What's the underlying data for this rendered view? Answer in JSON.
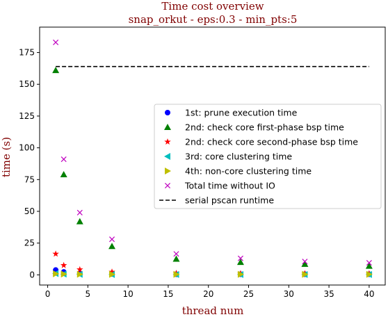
{
  "chart_data": {
    "type": "scatter",
    "title": "Time cost overview",
    "subtitle": "snap_orkut - eps:0.3 - min_pts:5",
    "xlabel": "thread num",
    "ylabel": "time (s)",
    "xlim": [
      -1,
      42
    ],
    "ylim": [
      -8,
      195
    ],
    "xticks": [
      0,
      5,
      10,
      15,
      20,
      25,
      30,
      35,
      40
    ],
    "yticks": [
      0,
      25,
      50,
      75,
      100,
      125,
      150,
      175
    ],
    "grid": false,
    "legend_position": "center-right",
    "x": [
      1,
      2,
      4,
      8,
      16,
      24,
      32,
      40
    ],
    "series": [
      {
        "name": "1st: prune execution time",
        "marker": "circle",
        "color": "#0000ff",
        "values": [
          3.8,
          2.3,
          1.2,
          0.7,
          0.5,
          0.5,
          0.5,
          0.5
        ]
      },
      {
        "name": "2nd: check core first-phase bsp time",
        "marker": "triangle-up",
        "color": "#008000",
        "values": [
          161,
          79,
          42,
          22.5,
          12.5,
          10,
          8.5,
          7
        ]
      },
      {
        "name": "2nd: check core second-phase bsp time",
        "marker": "star",
        "color": "#ff0000",
        "values": [
          16.5,
          7.5,
          4.2,
          2.3,
          1.3,
          1.1,
          1.0,
          1.0
        ]
      },
      {
        "name": "3rd: core clustering time",
        "marker": "triangle-left",
        "color": "#00bfbf",
        "values": [
          1.0,
          0.6,
          0.4,
          0.3,
          0.3,
          0.3,
          0.3,
          0.3
        ]
      },
      {
        "name": "4th: non-core clustering time",
        "marker": "triangle-right",
        "color": "#bfbf00",
        "values": [
          0.8,
          0.6,
          0.5,
          0.4,
          0.4,
          0.4,
          0.4,
          0.4
        ]
      },
      {
        "name": "Total time without IO",
        "marker": "x",
        "color": "#bf00bf",
        "values": [
          183,
          91,
          49,
          28,
          16.5,
          13,
          10.5,
          9.5
        ]
      }
    ],
    "reference_line": {
      "name": "serial pscan runtime",
      "style": "dashed",
      "color": "#000000",
      "value": 164,
      "x_range": [
        1,
        40
      ]
    }
  }
}
